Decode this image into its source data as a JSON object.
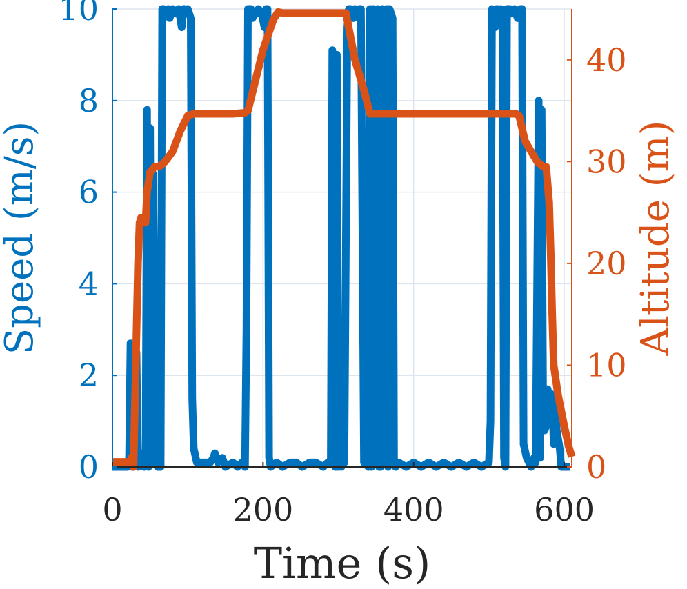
{
  "chart_data": {
    "type": "line",
    "xlabel": "Time (s)",
    "ylabel_left": "Speed (m/s)",
    "ylabel_right": "Altitude (m)",
    "xlim": [
      0,
      610
    ],
    "ylim_left": [
      0,
      10
    ],
    "ylim_right": [
      0,
      45
    ],
    "xticks": [
      0,
      200,
      400,
      600
    ],
    "yticks_left": [
      0,
      2,
      4,
      6,
      8,
      10
    ],
    "yticks_right": [
      0,
      10,
      20,
      30,
      40
    ],
    "grid": true,
    "colors": {
      "speed": "#0072BD",
      "altitude": "#D95319",
      "grid": "#dde6ee",
      "axis": "#262626"
    },
    "series": [
      {
        "axis": "left",
        "color": "#0072BD",
        "points": [
          [
            0,
            0
          ],
          [
            20,
            0
          ],
          [
            22,
            0.1
          ],
          [
            24,
            2.7
          ],
          [
            26,
            0
          ],
          [
            28,
            2.4
          ],
          [
            30,
            0.1
          ],
          [
            32,
            2.5
          ],
          [
            34,
            0
          ],
          [
            36,
            0.2
          ],
          [
            40,
            0.3
          ],
          [
            42,
            0
          ],
          [
            44,
            0.1
          ],
          [
            46,
            7.8
          ],
          [
            48,
            0
          ],
          [
            50,
            7.4
          ],
          [
            52,
            0.1
          ],
          [
            54,
            6.4
          ],
          [
            58,
            0.1
          ],
          [
            60,
            0
          ],
          [
            64,
            0
          ],
          [
            66,
            10
          ],
          [
            68,
            10
          ],
          [
            70,
            9.9
          ],
          [
            74,
            10
          ],
          [
            76,
            9.8
          ],
          [
            80,
            10
          ],
          [
            84,
            9.9
          ],
          [
            88,
            10
          ],
          [
            92,
            9.6
          ],
          [
            94,
            10
          ],
          [
            96,
            10
          ],
          [
            98,
            9.9
          ],
          [
            100,
            10
          ],
          [
            104,
            9.8
          ],
          [
            106,
            1.5
          ],
          [
            108,
            0.4
          ],
          [
            112,
            0.1
          ],
          [
            120,
            0.1
          ],
          [
            130,
            0.1
          ],
          [
            134,
            0.2
          ],
          [
            136,
            0.3
          ],
          [
            140,
            0.1
          ],
          [
            146,
            0.2
          ],
          [
            150,
            0
          ],
          [
            160,
            0.1
          ],
          [
            166,
            0
          ],
          [
            172,
            0.1
          ],
          [
            176,
            0
          ],
          [
            178,
            3
          ],
          [
            180,
            10
          ],
          [
            184,
            10
          ],
          [
            186,
            9.8
          ],
          [
            190,
            9.9
          ],
          [
            194,
            10
          ],
          [
            198,
            9.9
          ],
          [
            202,
            9.6
          ],
          [
            204,
            10
          ],
          [
            206,
            10
          ],
          [
            208,
            0.2
          ],
          [
            210,
            0
          ],
          [
            218,
            0.1
          ],
          [
            226,
            0
          ],
          [
            236,
            0.1
          ],
          [
            244,
            0.1
          ],
          [
            252,
            0
          ],
          [
            262,
            0.1
          ],
          [
            270,
            0.1
          ],
          [
            280,
            0
          ],
          [
            286,
            0.1
          ],
          [
            290,
            0.1
          ],
          [
            292,
            9.1
          ],
          [
            294,
            0.1
          ],
          [
            296,
            0
          ],
          [
            298,
            9
          ],
          [
            300,
            0
          ],
          [
            302,
            0.2
          ],
          [
            304,
            0
          ],
          [
            306,
            0.2
          ],
          [
            308,
            0.1
          ],
          [
            312,
            9.6
          ],
          [
            314,
            10
          ],
          [
            316,
            10
          ],
          [
            320,
            9.8
          ],
          [
            322,
            10
          ],
          [
            326,
            9.9
          ],
          [
            328,
            10
          ],
          [
            330,
            10
          ],
          [
            334,
            0.1
          ],
          [
            340,
            0
          ],
          [
            342,
            10
          ],
          [
            344,
            0
          ],
          [
            346,
            10
          ],
          [
            350,
            9.9
          ],
          [
            352,
            10
          ],
          [
            354,
            0
          ],
          [
            356,
            0
          ],
          [
            358,
            10
          ],
          [
            362,
            9.9
          ],
          [
            364,
            10
          ],
          [
            366,
            0
          ],
          [
            368,
            10
          ],
          [
            372,
            9.8
          ],
          [
            374,
            0.1
          ],
          [
            376,
            0
          ],
          [
            380,
            0.1
          ],
          [
            390,
            0
          ],
          [
            400,
            0.1
          ],
          [
            410,
            0
          ],
          [
            420,
            0.1
          ],
          [
            430,
            0
          ],
          [
            440,
            0.1
          ],
          [
            450,
            0
          ],
          [
            460,
            0.1
          ],
          [
            470,
            0
          ],
          [
            480,
            0.1
          ],
          [
            490,
            0
          ],
          [
            500,
            0.1
          ],
          [
            502,
            1
          ],
          [
            504,
            10
          ],
          [
            508,
            9.6
          ],
          [
            510,
            10
          ],
          [
            512,
            10
          ],
          [
            514,
            9.8
          ],
          [
            516,
            10
          ],
          [
            518,
            9.5
          ],
          [
            520,
            0.2
          ],
          [
            522,
            0
          ],
          [
            524,
            10
          ],
          [
            528,
            10
          ],
          [
            530,
            9.9
          ],
          [
            534,
            10
          ],
          [
            538,
            9.8
          ],
          [
            542,
            10
          ],
          [
            544,
            10
          ],
          [
            546,
            0.5
          ],
          [
            550,
            0.2
          ],
          [
            556,
            0
          ],
          [
            560,
            0.2
          ],
          [
            562,
            0.1
          ],
          [
            566,
            8
          ],
          [
            568,
            0.2
          ],
          [
            570,
            7.8
          ],
          [
            572,
            1
          ],
          [
            574,
            0.8
          ],
          [
            576,
            0.9
          ],
          [
            578,
            1.7
          ],
          [
            580,
            1
          ],
          [
            582,
            1.6
          ],
          [
            584,
            1.5
          ],
          [
            586,
            0.5
          ],
          [
            588,
            1.5
          ],
          [
            590,
            0.8
          ],
          [
            594,
            0.4
          ],
          [
            596,
            0
          ],
          [
            600,
            0
          ],
          [
            604,
            0
          ],
          [
            608,
            0
          ]
        ]
      },
      {
        "axis": "right",
        "color": "#D95319",
        "points": [
          [
            0,
            0.5
          ],
          [
            24,
            0.5
          ],
          [
            26,
            1
          ],
          [
            28,
            0
          ],
          [
            34,
            20
          ],
          [
            36,
            24
          ],
          [
            38,
            24.5
          ],
          [
            44,
            24
          ],
          [
            46,
            27
          ],
          [
            50,
            29
          ],
          [
            56,
            29.5
          ],
          [
            62,
            29.5
          ],
          [
            70,
            30
          ],
          [
            80,
            31
          ],
          [
            90,
            33
          ],
          [
            100,
            34.5
          ],
          [
            108,
            34.7
          ],
          [
            120,
            34.7
          ],
          [
            140,
            34.7
          ],
          [
            160,
            34.7
          ],
          [
            176,
            34.8
          ],
          [
            180,
            35
          ],
          [
            190,
            38
          ],
          [
            200,
            41
          ],
          [
            214,
            44
          ],
          [
            220,
            44.7
          ],
          [
            226,
            44.6
          ],
          [
            240,
            44.6
          ],
          [
            260,
            44.6
          ],
          [
            280,
            44.6
          ],
          [
            296,
            44.6
          ],
          [
            310,
            44.6
          ],
          [
            322,
            40
          ],
          [
            334,
            37
          ],
          [
            342,
            34.7
          ],
          [
            360,
            34.7
          ],
          [
            380,
            34.7
          ],
          [
            400,
            34.7
          ],
          [
            420,
            34.7
          ],
          [
            440,
            34.7
          ],
          [
            460,
            34.7
          ],
          [
            480,
            34.7
          ],
          [
            500,
            34.7
          ],
          [
            520,
            34.7
          ],
          [
            536,
            34.7
          ],
          [
            540,
            34.5
          ],
          [
            548,
            32
          ],
          [
            556,
            31
          ],
          [
            564,
            30
          ],
          [
            572,
            29.5
          ],
          [
            576,
            29.5
          ],
          [
            580,
            26
          ],
          [
            582,
            21
          ],
          [
            584,
            15
          ],
          [
            586,
            10
          ],
          [
            592,
            7
          ],
          [
            600,
            4
          ],
          [
            606,
            2
          ],
          [
            610,
            1
          ]
        ]
      }
    ]
  }
}
